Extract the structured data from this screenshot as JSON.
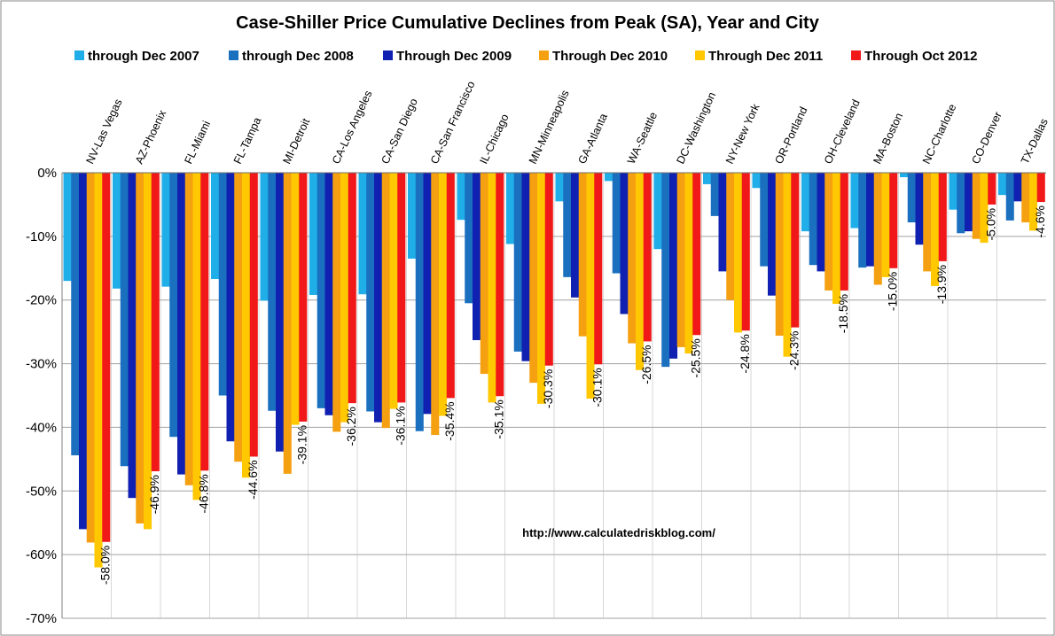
{
  "chart_data": {
    "type": "bar",
    "title": "Case-Shiller Price Cumulative Declines from Peak (SA),  Year and City",
    "url_label": "http://www.calculatedriskblog.com/",
    "ylim": [
      -70,
      0
    ],
    "yticks": [
      "0%",
      "-10%",
      "-20%",
      "-30%",
      "-40%",
      "-50%",
      "-60%",
      "-70%"
    ],
    "ytick_values": [
      0,
      -10,
      -20,
      -30,
      -40,
      -50,
      -60,
      -70
    ],
    "grid": true,
    "legend_position": "top",
    "categories": [
      "NV-Las Vegas",
      "AZ-Phoenix",
      "FL-Miami",
      "FL-Tampa",
      "MI-Detroit",
      "CA-Los Angeles",
      "CA-San Diego",
      "CA-San Francisco",
      "IL-Chicago",
      "MN-Minneapolis",
      "GA-Atlanta",
      "WA-Seattle",
      "DC-Washington",
      "NY-New York",
      "OR-Portland",
      "OH-Cleveland",
      "MA-Boston",
      "NC-Charlotte",
      "CO-Denver",
      "TX-Dallas"
    ],
    "series": [
      {
        "name": "through Dec 2007",
        "color": "#1FAEE8",
        "values": [
          -17.0,
          -18.2,
          -17.9,
          -16.7,
          -20.1,
          -19.2,
          -19.1,
          -13.5,
          -7.4,
          -11.2,
          -4.5,
          -1.3,
          -12.0,
          -1.8,
          -2.4,
          -9.2,
          -8.7,
          -0.7,
          -5.8,
          -3.5
        ]
      },
      {
        "name": "through Dec 2008",
        "color": "#1A6FBF",
        "values": [
          -44.4,
          -46.1,
          -41.5,
          -35.0,
          -37.4,
          -37.0,
          -37.5,
          -40.6,
          -20.5,
          -28.1,
          -16.4,
          -15.8,
          -30.5,
          -6.8,
          -14.7,
          -14.5,
          -14.9,
          -7.8,
          -9.5,
          -7.5
        ]
      },
      {
        "name": "Through Dec 2009",
        "color": "#1020B0",
        "values": [
          -56.0,
          -51.1,
          -47.4,
          -42.2,
          -43.8,
          -38.1,
          -39.2,
          -37.9,
          -26.3,
          -29.6,
          -19.6,
          -22.2,
          -29.2,
          -15.5,
          -19.3,
          -15.5,
          -14.7,
          -11.3,
          -9.2,
          -4.5
        ]
      },
      {
        "name": "Through Dec 2010",
        "color": "#F5A010",
        "values": [
          -58.1,
          -55.1,
          -49.1,
          -45.4,
          -47.3,
          -40.7,
          -40.1,
          -41.2,
          -31.6,
          -33.0,
          -25.7,
          -26.8,
          -27.4,
          -20.0,
          -25.6,
          -18.5,
          -17.6,
          -15.5,
          -10.4,
          -7.8
        ]
      },
      {
        "name": "Through Dec 2011",
        "color": "#FFC800",
        "values": [
          -62.0,
          -56.0,
          -51.4,
          -47.9,
          -39.6,
          -39.2,
          -37.1,
          -38.2,
          -36.1,
          -36.3,
          -35.5,
          -31.0,
          -28.4,
          -25.1,
          -28.9,
          -20.6,
          -16.4,
          -17.8,
          -11.0,
          -9.1
        ]
      },
      {
        "name": "Through Oct 2012",
        "color": "#F01818",
        "values": [
          -58.0,
          -46.9,
          -46.8,
          -44.6,
          -39.1,
          -36.2,
          -36.1,
          -35.4,
          -35.1,
          -30.3,
          -30.1,
          -26.5,
          -25.5,
          -24.8,
          -24.3,
          -18.5,
          -15.0,
          -13.9,
          -5.0,
          -4.6
        ]
      }
    ],
    "data_labels": [
      "-58.0%",
      "-46.9%",
      "-46.8%",
      "-44.6%",
      "-39.1%",
      "-36.2%",
      "-36.1%",
      "-35.4%",
      "-35.1%",
      "-30.3%",
      "-30.1%",
      "-26.5%",
      "-25.5%",
      "-24.8%",
      "-24.3%",
      "-18.5%",
      "-15.0%",
      "-13.9%",
      "-5.0%",
      "-4.6%"
    ]
  }
}
